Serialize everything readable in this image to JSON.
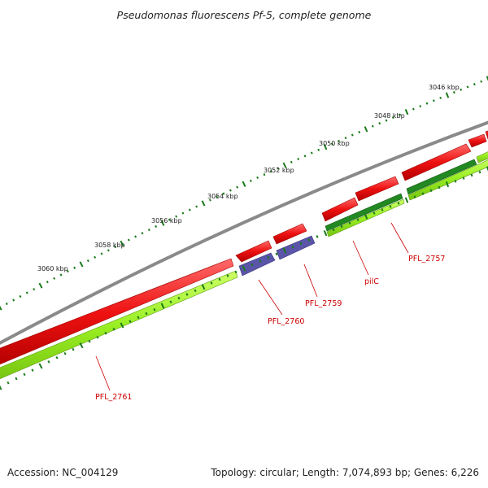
{
  "title": "Pseudomonas fluorescens Pf-5, complete genome",
  "footer": {
    "accession": "Accession: NC_004129",
    "summary": "Topology: circular; Length: 7,074,893 bp; Genes: 6,226"
  },
  "colors": {
    "backbone": "#8a8a8a",
    "forward_gene": "#ee1111",
    "reverse_gene_cds": "#5a55a8",
    "reverse_gene": "#99ee22",
    "reverse_rna": "#228822",
    "tick_major": "#1a7a1a",
    "tick_minor": "#1a7a1a",
    "label": "#cc0000"
  },
  "scale_labels": [
    "3046 kbp",
    "3048 kbp",
    "3050 kbp",
    "3052 kbp",
    "3054 kbp",
    "3056 kbp",
    "3058 kbp",
    "3060 kbp"
  ],
  "gene_labels": [
    "PFL_2757",
    "pilC",
    "PFL_2759",
    "PFL_2760",
    "PFL_2761"
  ]
}
